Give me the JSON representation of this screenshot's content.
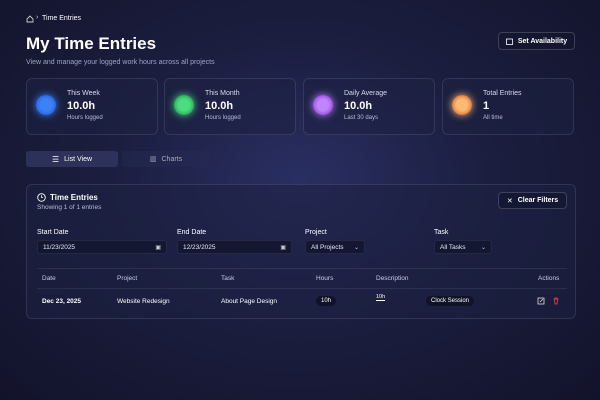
{
  "breadcrumb": {
    "current": "Time Entries"
  },
  "header": {
    "title": "My Time Entries",
    "subtitle": "View and manage your logged work hours across all projects",
    "button": "Set Availability"
  },
  "stats": [
    {
      "label": "This Week",
      "value": "10.0h",
      "note": "Hours logged"
    },
    {
      "label": "This Month",
      "value": "10.0h",
      "note": "Hours logged"
    },
    {
      "label": "Daily Average",
      "value": "10.0h",
      "note": "Last 30 days"
    },
    {
      "label": "Total Entries",
      "value": "1",
      "note": "All time"
    }
  ],
  "tabs": [
    "List View",
    "Charts"
  ],
  "section": {
    "title": "Time Entries",
    "subtitle": "Showing 1 of 1 entries",
    "button": "Clear Filters"
  },
  "filters": [
    {
      "label": "Start Date",
      "value": "11/23/2025"
    },
    {
      "label": "End Date",
      "value": "12/23/2025"
    },
    {
      "label": "Project",
      "value": "All Projects"
    },
    {
      "label": "Task",
      "value": "All Tasks"
    }
  ],
  "table": {
    "headers": [
      "Date",
      "Project",
      "Task",
      "Hours",
      "Description",
      "Actions"
    ],
    "rows": [
      [
        "Dec 23, 2025",
        "Website Redesign",
        "About Page Design",
        "10h",
        "10h",
        "Clock Session"
      ]
    ]
  }
}
